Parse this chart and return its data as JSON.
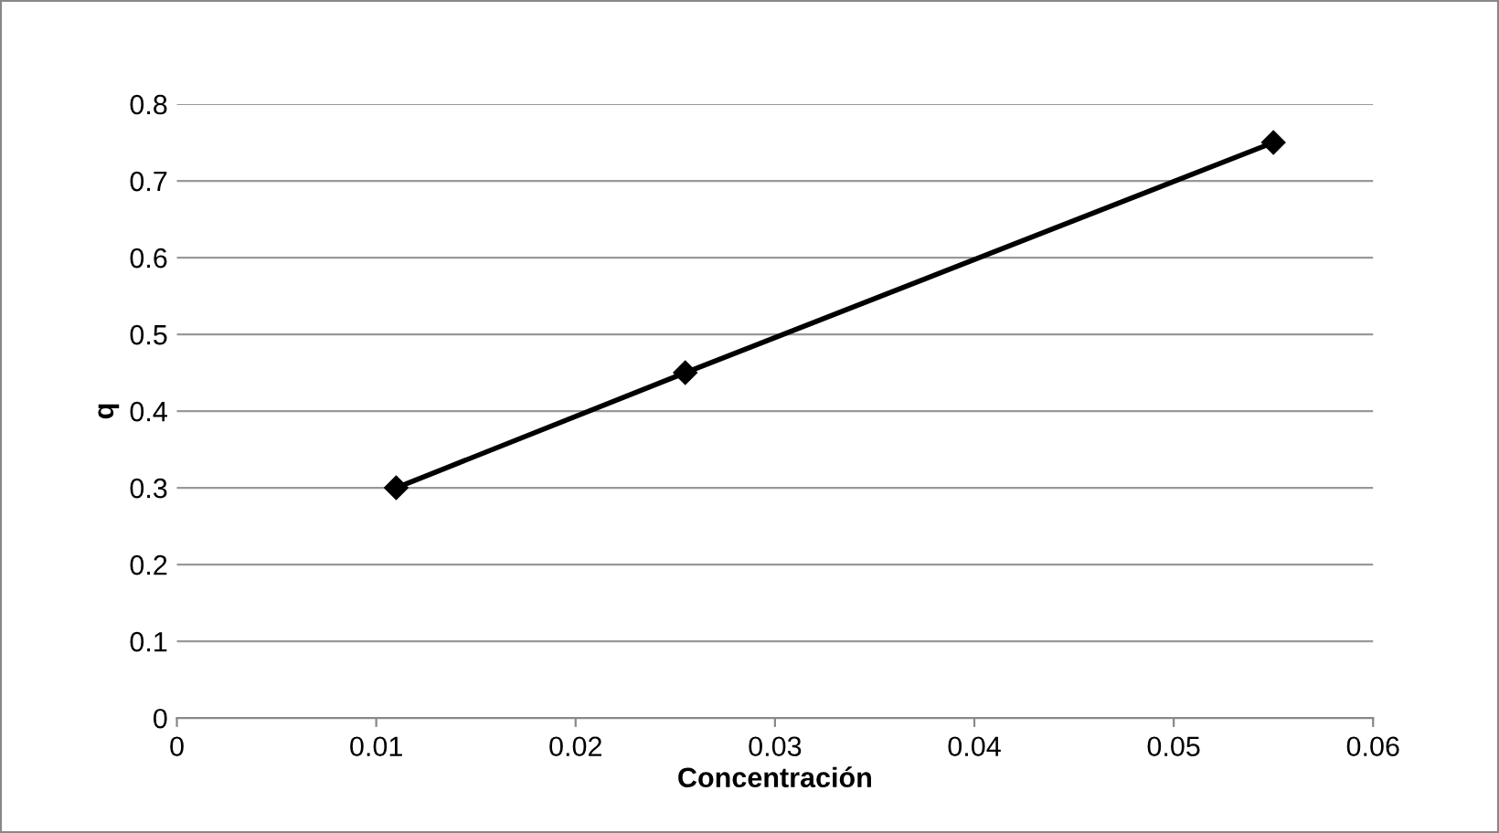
{
  "chart_data": {
    "type": "line",
    "xlabel": "Concentración",
    "ylabel": "q",
    "x": [
      0.011,
      0.0255,
      0.055
    ],
    "series": [
      {
        "color": "#000000",
        "values": [
          0.3,
          0.45,
          0.75
        ]
      }
    ],
    "xlim": [
      0,
      0.06
    ],
    "xticks": [
      0,
      0.01,
      0.02,
      0.03,
      0.04,
      0.05,
      0.06
    ],
    "ylim": [
      0,
      0.8
    ],
    "yticks": [
      0,
      0.1,
      0.2,
      0.3,
      0.4,
      0.5,
      0.6,
      0.7,
      0.8
    ],
    "grid": "y",
    "marker": "diamond",
    "line_style": "solid",
    "legend": false
  }
}
